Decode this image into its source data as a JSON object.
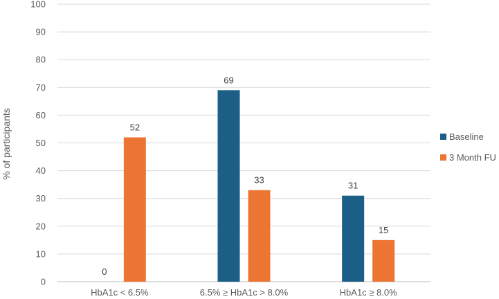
{
  "chart_data": {
    "type": "bar",
    "categories": [
      "HbA1c < 6.5%",
      "6.5% ≥ HbA1c > 8.0%",
      "HbA1c ≥ 8.0%"
    ],
    "series": [
      {
        "name": "Baseline",
        "values": [
          0,
          69,
          31
        ],
        "color": "#1b5e86"
      },
      {
        "name": "3 Month FU",
        "values": [
          52,
          33,
          15
        ],
        "color": "#ed7534"
      }
    ],
    "title": "",
    "xlabel": "",
    "ylabel": "% of participants",
    "ylim": [
      0,
      100
    ],
    "yticks": [
      0,
      10,
      20,
      30,
      40,
      50,
      60,
      70,
      80,
      90,
      100
    ],
    "grid": true,
    "legend_position": "right"
  }
}
